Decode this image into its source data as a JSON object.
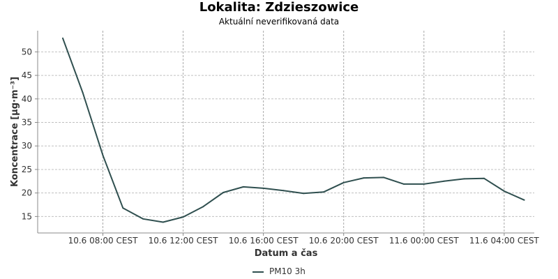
{
  "header": {
    "title": "Lokalita: Zdzieszowice",
    "subtitle": "Aktuální neverifikovaná data"
  },
  "chart_data": {
    "type": "line",
    "title": "Lokalita: Zdzieszowice",
    "subtitle": "Aktuální neverifikovaná data",
    "xlabel": "Datum a čas",
    "ylabel": "Koncentrace [µg·m⁻³]",
    "ylim": [
      11.5,
      54.5
    ],
    "yticks": [
      15,
      20,
      25,
      30,
      35,
      40,
      45,
      50
    ],
    "xlim": [
      "2024-06-10T04:45",
      "2024-06-11T05:30"
    ],
    "xticks": [
      {
        "x": "2024-06-10T08:00",
        "label": "10.6 08:00 CEST"
      },
      {
        "x": "2024-06-10T12:00",
        "label": "10.6 12:00 CEST"
      },
      {
        "x": "2024-06-10T16:00",
        "label": "10.6 16:00 CEST"
      },
      {
        "x": "2024-06-10T20:00",
        "label": "10.6 20:00 CEST"
      },
      {
        "x": "2024-06-11T00:00",
        "label": "11.6 00:00 CEST"
      },
      {
        "x": "2024-06-11T04:00",
        "label": "11.6 04:00 CEST"
      }
    ],
    "grid": true,
    "legend_position": "bottom",
    "series": [
      {
        "name": "PM10 3h",
        "color": "#2f4f4f",
        "x": [
          "2024-06-10T06:00",
          "2024-06-10T07:00",
          "2024-06-10T08:00",
          "2024-06-10T09:00",
          "2024-06-10T10:00",
          "2024-06-10T11:00",
          "2024-06-10T12:00",
          "2024-06-10T13:00",
          "2024-06-10T14:00",
          "2024-06-10T15:00",
          "2024-06-10T16:00",
          "2024-06-10T17:00",
          "2024-06-10T18:00",
          "2024-06-10T19:00",
          "2024-06-10T20:00",
          "2024-06-10T21:00",
          "2024-06-10T22:00",
          "2024-06-10T23:00",
          "2024-06-11T00:00",
          "2024-06-11T01:00",
          "2024-06-11T02:00",
          "2024-06-11T03:00",
          "2024-06-11T04:00",
          "2024-06-11T05:00"
        ],
        "values": [
          52.9,
          41.3,
          28.0,
          16.8,
          14.5,
          13.8,
          14.9,
          17.1,
          20.1,
          21.3,
          21.0,
          20.5,
          19.9,
          20.2,
          22.2,
          23.2,
          23.3,
          21.9,
          21.9,
          22.5,
          23.0,
          23.1,
          20.4,
          18.5
        ]
      }
    ]
  }
}
